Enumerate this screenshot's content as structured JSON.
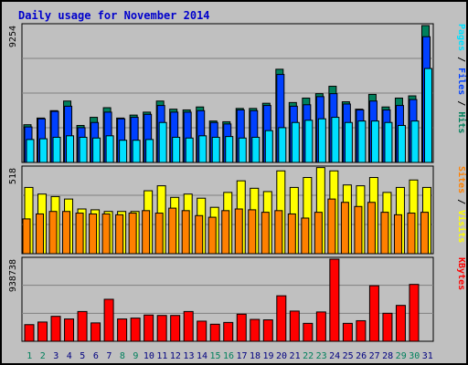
{
  "title": "Daily usage for November 2014",
  "colors": {
    "hits": "#00805c",
    "files": "#0040ff",
    "pages": "#00e0ff",
    "visits": "#ffff00",
    "sites": "#ff8000",
    "kbytes": "#ff0000",
    "weekend_day_label": "#00805c",
    "weekday_label": "#000080"
  },
  "chart_data": [
    {
      "type": "bar",
      "title": "Daily usage for November 2014",
      "ylabel_parts": [
        "Pages",
        "Files",
        "Hits"
      ],
      "ymax_label": "9254",
      "ylim": [
        0,
        9254
      ],
      "categories": [
        "1",
        "2",
        "3",
        "4",
        "5",
        "6",
        "7",
        "8",
        "9",
        "10",
        "11",
        "12",
        "13",
        "14",
        "15",
        "16",
        "17",
        "18",
        "19",
        "20",
        "21",
        "22",
        "23",
        "24",
        "25",
        "26",
        "27",
        "28",
        "29",
        "30",
        "31"
      ],
      "series": [
        {
          "name": "Hits",
          "values": [
            2550,
            3000,
            3500,
            4150,
            2500,
            3050,
            3700,
            3000,
            3200,
            3400,
            4150,
            3600,
            3550,
            3750,
            2800,
            2750,
            3650,
            3650,
            4000,
            6300,
            4050,
            4350,
            4650,
            5150,
            4100,
            3600,
            4600,
            3750,
            4350,
            4500,
            9254
          ]
        },
        {
          "name": "Files",
          "values": [
            2400,
            2950,
            3450,
            3800,
            2350,
            2700,
            3400,
            2950,
            3050,
            3250,
            3850,
            3400,
            3400,
            3500,
            2700,
            2600,
            3550,
            3500,
            3850,
            5950,
            3800,
            3900,
            4450,
            4650,
            3950,
            3550,
            4150,
            3550,
            3850,
            4250,
            8500
          ]
        },
        {
          "name": "Pages",
          "values": [
            1550,
            1600,
            1700,
            1800,
            1700,
            1650,
            1800,
            1500,
            1500,
            1550,
            2700,
            1700,
            1650,
            1800,
            1700,
            1750,
            1650,
            1700,
            2150,
            2350,
            2700,
            2850,
            2950,
            3050,
            2700,
            2800,
            2800,
            2700,
            2500,
            2800,
            6350
          ]
        }
      ]
    },
    {
      "type": "bar",
      "ylabel_parts": [
        "Sites",
        "Visits"
      ],
      "ymax_label": "518",
      "ylim": [
        0,
        518
      ],
      "categories": [
        "1",
        "2",
        "3",
        "4",
        "5",
        "6",
        "7",
        "8",
        "9",
        "10",
        "11",
        "12",
        "13",
        "14",
        "15",
        "16",
        "17",
        "18",
        "19",
        "20",
        "21",
        "22",
        "23",
        "24",
        "25",
        "26",
        "27",
        "28",
        "29",
        "30",
        "31"
      ],
      "series": [
        {
          "name": "Visits",
          "values": [
            400,
            360,
            345,
            330,
            270,
            265,
            255,
            255,
            255,
            380,
            410,
            340,
            360,
            335,
            280,
            370,
            440,
            395,
            375,
            500,
            400,
            460,
            520,
            500,
            415,
            410,
            460,
            370,
            400,
            445,
            400
          ]
        },
        {
          "name": "Sites",
          "values": [
            210,
            240,
            255,
            255,
            245,
            240,
            240,
            235,
            245,
            260,
            245,
            275,
            260,
            230,
            220,
            260,
            270,
            265,
            250,
            260,
            240,
            215,
            250,
            330,
            310,
            285,
            310,
            250,
            235,
            245,
            250
          ]
        }
      ]
    },
    {
      "type": "bar",
      "ylabel_parts": [
        "KBytes"
      ],
      "ymax_label": "938738",
      "ylim": [
        0,
        938738
      ],
      "categories": [
        "1",
        "2",
        "3",
        "4",
        "5",
        "6",
        "7",
        "8",
        "9",
        "10",
        "11",
        "12",
        "13",
        "14",
        "15",
        "16",
        "17",
        "18",
        "19",
        "20",
        "21",
        "22",
        "23",
        "24",
        "25",
        "26",
        "27",
        "28",
        "29",
        "30",
        "31"
      ],
      "series": [
        {
          "name": "KBytes",
          "values": [
            190000,
            220000,
            285000,
            255000,
            340000,
            210000,
            480000,
            255000,
            265000,
            300000,
            295000,
            295000,
            340000,
            230000,
            195000,
            215000,
            310000,
            250000,
            245000,
            520000,
            345000,
            205000,
            335000,
            938738,
            205000,
            235000,
            635000,
            320000,
            410000,
            650000,
            0
          ]
        }
      ]
    }
  ]
}
